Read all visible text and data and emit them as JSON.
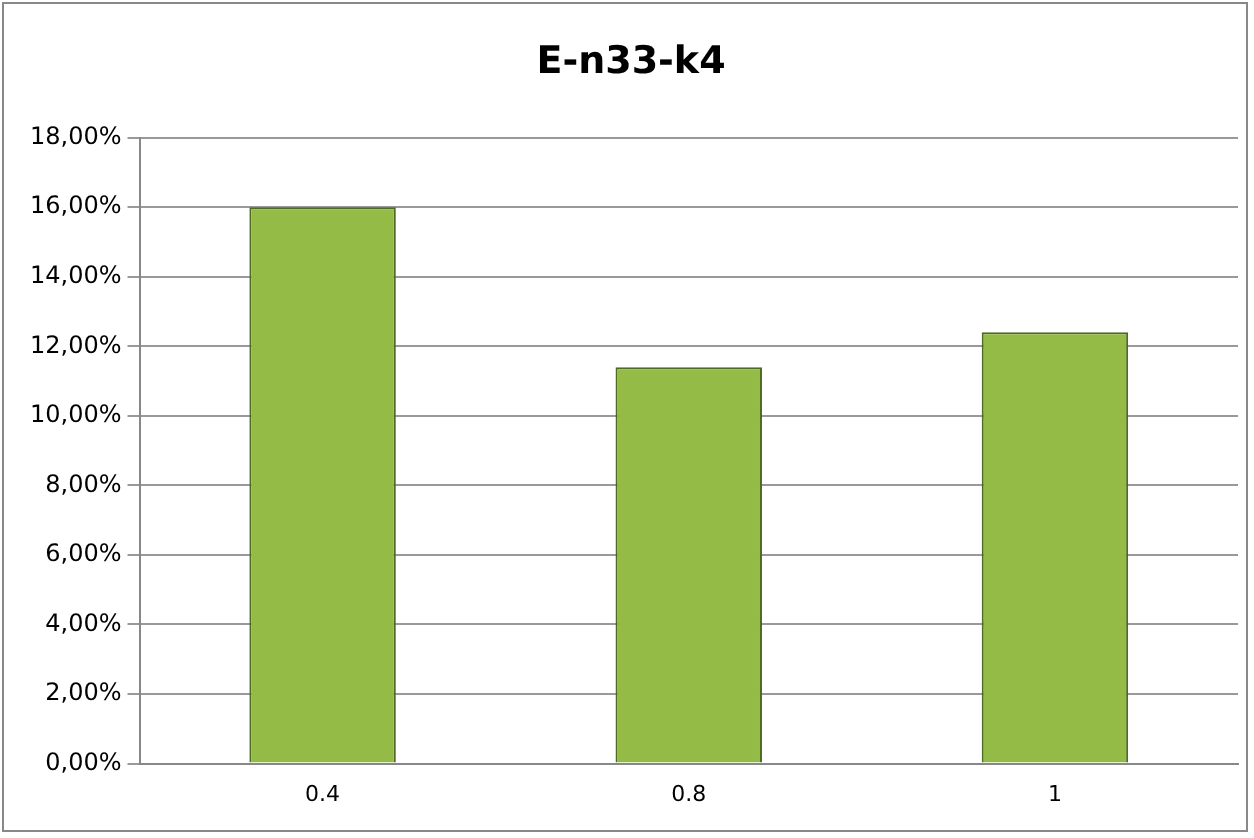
{
  "chart_data": {
    "type": "bar",
    "title": "E-n33-k4",
    "categories": [
      "0.4",
      "0.8",
      "1"
    ],
    "values": [
      16.0,
      11.4,
      12.4
    ],
    "color": "#94bb45",
    "ylim": [
      0,
      18
    ],
    "yticks": [
      {
        "value": 0,
        "label": "0,00%"
      },
      {
        "value": 2,
        "label": "2,00%"
      },
      {
        "value": 4,
        "label": "4,00%"
      },
      {
        "value": 6,
        "label": "6,00%"
      },
      {
        "value": 8,
        "label": "8,00%"
      },
      {
        "value": 10,
        "label": "10,00%"
      },
      {
        "value": 12,
        "label": "12,00%"
      },
      {
        "value": 14,
        "label": "14,00%"
      },
      {
        "value": 16,
        "label": "16,00%"
      },
      {
        "value": 18,
        "label": "18,00%"
      }
    ],
    "grid": "y",
    "legend": false
  }
}
